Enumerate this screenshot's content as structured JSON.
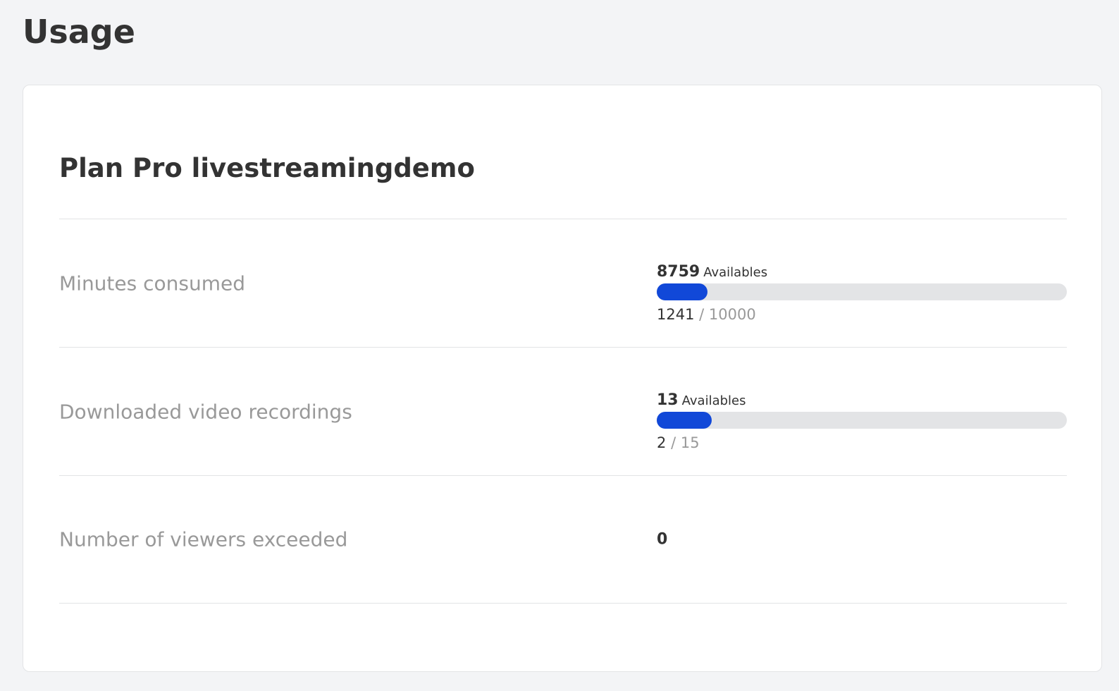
{
  "header": {
    "title": "Usage"
  },
  "card": {
    "title": "Plan Pro livestreamingdemo",
    "rows": [
      {
        "label": "Minutes consumed",
        "available": 8759,
        "available_label": "Availables",
        "used": 1241,
        "separator": "/",
        "total": 10000
      },
      {
        "label": "Downloaded video recordings",
        "available": 13,
        "available_label": "Availables",
        "used": 2,
        "separator": "/",
        "total": 15
      },
      {
        "label": "Number of viewers exceeded",
        "value": 0
      }
    ]
  }
}
